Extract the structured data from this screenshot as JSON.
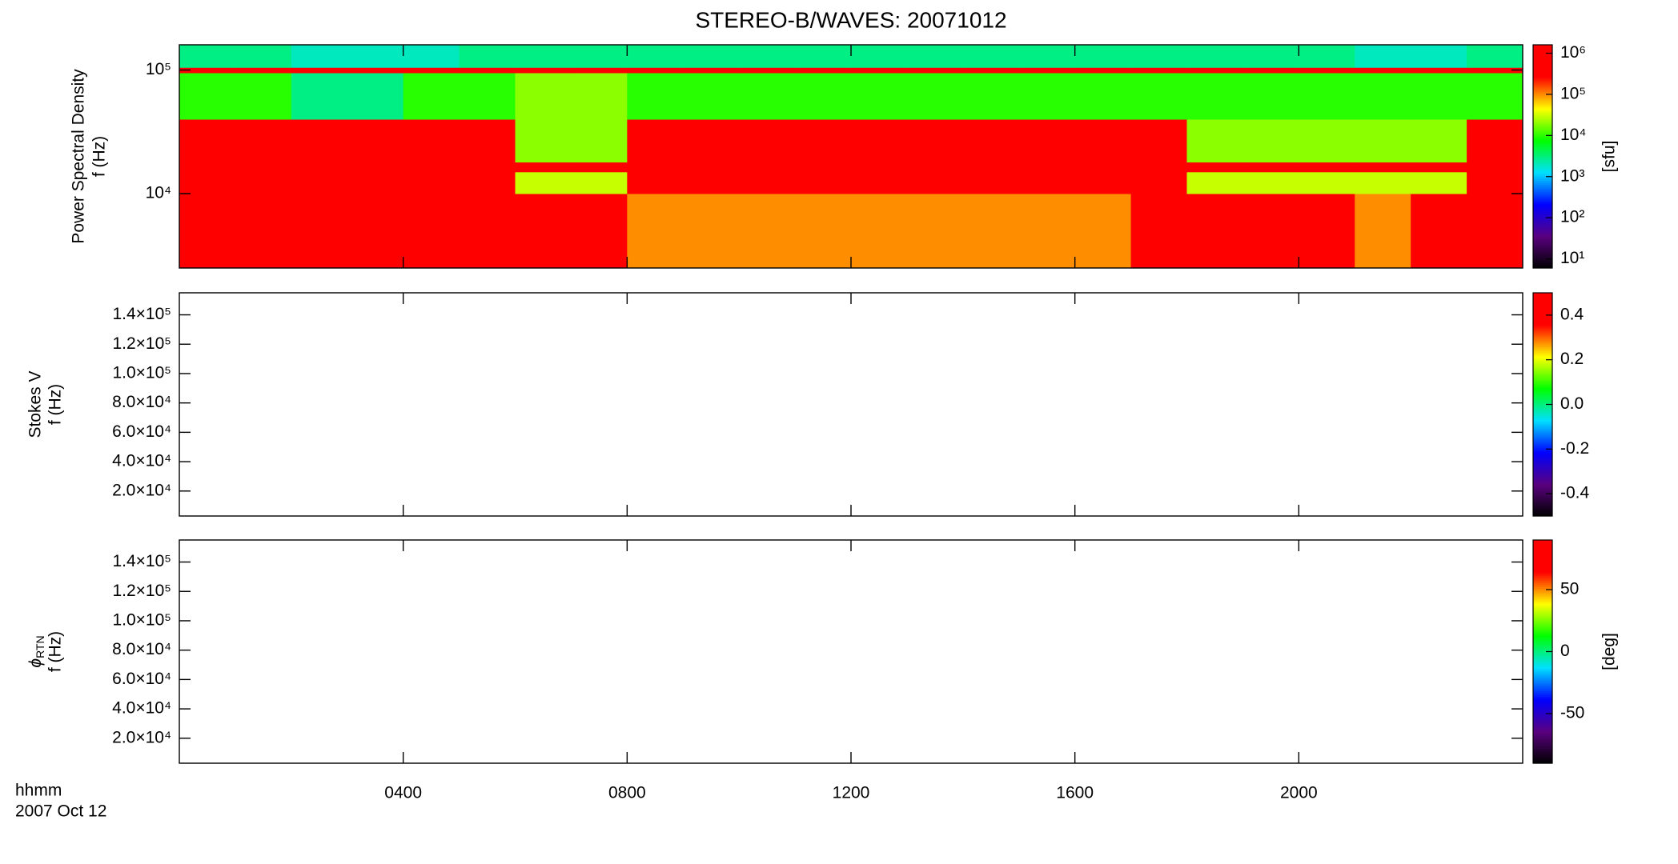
{
  "chart_data": [
    {
      "type": "heatmap",
      "title": "STEREO-B/WAVES: 20071012",
      "ylabel": [
        "Power Spectral Density",
        "f (Hz)"
      ],
      "ylog": true,
      "ylim": [
        2500,
        160000
      ],
      "yticks": [
        {
          "value": 10000,
          "label": "10⁴"
        },
        {
          "value": 100000,
          "label": "10⁵"
        }
      ],
      "xlim": [
        0,
        24
      ],
      "xticks": [
        4,
        8,
        12,
        16,
        20
      ],
      "x_edges": [
        0,
        1,
        2,
        3,
        4,
        5,
        6,
        7,
        8,
        9,
        10,
        11,
        12,
        13,
        14,
        15,
        16,
        17,
        18,
        19,
        20,
        21,
        22,
        23,
        24
      ],
      "y_edges": [
        2500,
        10000,
        15000,
        18000,
        40000,
        95000,
        105000,
        160000
      ],
      "z": [
        [
          1000000,
          1000000,
          1000000,
          1000000,
          1000000,
          1000000,
          1000000,
          1000000,
          100000,
          100000,
          100000,
          100000,
          100000,
          100000,
          100000,
          100000,
          100000,
          1000000,
          300000,
          1000000,
          300000,
          100000,
          300000,
          1000000
        ],
        [
          1000000,
          1000000,
          1000000,
          1000000,
          1000000,
          1000000,
          30000,
          30000,
          1000000,
          1000000,
          1000000,
          1000000,
          1000000,
          1000000,
          1000000,
          1000000,
          1000000,
          1000000,
          30000,
          30000,
          30000,
          30000,
          30000,
          1000000
        ],
        [
          1000000,
          1000000,
          1000000,
          1000000,
          1000000,
          1000000,
          1000000,
          1000000,
          1000000,
          1000000,
          1000000,
          1000000,
          1000000,
          1000000,
          1000000,
          1000000,
          1000000,
          1000000,
          1000000,
          1000000,
          1000000,
          1000000,
          1000000,
          1000000
        ],
        [
          1000000,
          1000000,
          1000000,
          1000000,
          1000000,
          1000000,
          20000,
          20000,
          1000000,
          1000000,
          1000000,
          1000000,
          1000000,
          1000000,
          1000000,
          1000000,
          1000000,
          1000000,
          20000,
          20000,
          20000,
          20000,
          20000,
          1000000
        ],
        [
          10000,
          10000,
          3000,
          3000,
          10000,
          10000,
          20000,
          20000,
          10000,
          10000,
          10000,
          10000,
          10000,
          10000,
          10000,
          10000,
          10000,
          10000,
          10000,
          10000,
          10000,
          10000,
          10000,
          10000
        ],
        [
          1000000,
          1000000,
          1000000,
          1000000,
          1000000,
          1000000,
          1000000,
          1000000,
          1000000,
          1000000,
          1000000,
          1000000,
          1000000,
          1000000,
          1000000,
          1000000,
          1000000,
          1000000,
          1000000,
          1000000,
          1000000,
          1000000,
          1000000,
          1000000
        ],
        [
          3000,
          3000,
          2000,
          2000,
          2000,
          3000,
          3000,
          3000,
          3000,
          3000,
          3000,
          3000,
          3000,
          3000,
          3000,
          3000,
          3000,
          3000,
          3000,
          3000,
          3000,
          2000,
          2000,
          3000
        ]
      ],
      "clog": true,
      "clim": [
        6,
        1600000
      ],
      "cticks": [
        {
          "value": 10,
          "label": "10¹"
        },
        {
          "value": 100,
          "label": "10²"
        },
        {
          "value": 1000,
          "label": "10³"
        },
        {
          "value": 10000,
          "label": "10⁴"
        },
        {
          "value": 100000,
          "label": "10⁵"
        },
        {
          "value": 1000000,
          "label": "10⁶"
        }
      ],
      "clabel": "[sfu]",
      "colorscale": [
        "#000000",
        "#5a007f",
        "#0000ff",
        "#00e0ff",
        "#00ff00",
        "#ffff00",
        "#ff0000",
        "#ff0000"
      ]
    },
    {
      "type": "heatmap",
      "ylabel": [
        "Stokes V",
        "f (Hz)"
      ],
      "ylim": [
        3000,
        155000
      ],
      "yticks": [
        {
          "value": 20000,
          "label": "2.0×10⁴"
        },
        {
          "value": 40000,
          "label": "4.0×10⁴"
        },
        {
          "value": 60000,
          "label": "6.0×10⁴"
        },
        {
          "value": 80000,
          "label": "8.0×10⁴"
        },
        {
          "value": 100000,
          "label": "1.0×10⁵"
        },
        {
          "value": 120000,
          "label": "1.2×10⁵"
        },
        {
          "value": 140000,
          "label": "1.4×10⁵"
        }
      ],
      "xlim": [
        0,
        24
      ],
      "xticks": [
        4,
        8,
        12,
        16,
        20
      ],
      "clim": [
        -0.5,
        0.5
      ],
      "cticks": [
        -0.4,
        -0.2,
        {
          "value": 0,
          "label": "0.0"
        },
        0.2,
        0.4
      ],
      "colorscale": [
        "#000000",
        "#5a007f",
        "#0000ff",
        "#00e0ff",
        "#00ff00",
        "#ffff00",
        "#ff0000",
        "#ff0000"
      ]
    },
    {
      "type": "heatmap",
      "ylabel": [
        {
          "text": "ϕ",
          "sub": "RTN"
        },
        "f (Hz)"
      ],
      "ylim": [
        3000,
        155000
      ],
      "yticks": [
        {
          "value": 20000,
          "label": "2.0×10⁴"
        },
        {
          "value": 40000,
          "label": "4.0×10⁴"
        },
        {
          "value": 60000,
          "label": "6.0×10⁴"
        },
        {
          "value": 80000,
          "label": "8.0×10⁴"
        },
        {
          "value": 100000,
          "label": "1.0×10⁵"
        },
        {
          "value": 120000,
          "label": "1.2×10⁵"
        },
        {
          "value": 140000,
          "label": "1.4×10⁵"
        }
      ],
      "xlim": [
        0,
        24
      ],
      "xticks": [
        {
          "value": 4,
          "label": "0400"
        },
        {
          "value": 8,
          "label": "0800"
        },
        {
          "value": 12,
          "label": "1200"
        },
        {
          "value": 16,
          "label": "1600"
        },
        {
          "value": 20,
          "label": "2000"
        }
      ],
      "xlabel": "hhmm",
      "date": "2007 Oct 12",
      "clim": [
        -90,
        90
      ],
      "cticks": [
        -50,
        0,
        50
      ],
      "clabel": "[deg]",
      "colorscale": [
        "#000000",
        "#5a007f",
        "#0000ff",
        "#00e0ff",
        "#00ff00",
        "#ffff00",
        "#ff0000",
        "#ff0000"
      ]
    }
  ]
}
